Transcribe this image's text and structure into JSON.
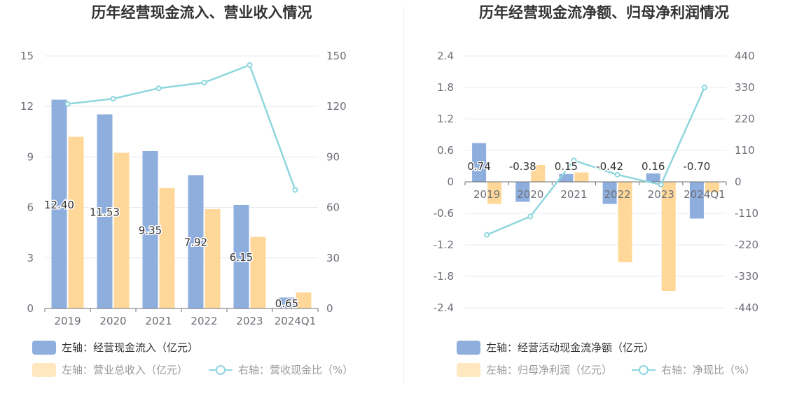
{
  "chart_data": [
    {
      "type": "bar",
      "title": "历年经营现金流入、营业收入情况",
      "categories": [
        "2019",
        "2020",
        "2021",
        "2022",
        "2023",
        "2024Q1"
      ],
      "left_axis": {
        "ticks": [
          "0",
          "3",
          "6",
          "9",
          "12",
          "15"
        ],
        "ylim": [
          0,
          15
        ]
      },
      "right_axis": {
        "ticks": [
          "0",
          "30",
          "60",
          "90",
          "120",
          "150"
        ],
        "ylim": [
          0,
          150
        ]
      },
      "series": [
        {
          "name": "左轴：经营现金流入（亿元）",
          "axis": "left",
          "color": "#8eaedd",
          "values": [
            12.4,
            11.53,
            9.35,
            7.92,
            6.15,
            0.65
          ],
          "labels": [
            "12.40",
            "11.53",
            "9.35",
            "7.92",
            "6.15",
            "0.65"
          ]
        },
        {
          "name": "左轴：营业总收入（亿元）",
          "axis": "left",
          "color": "#ffd899",
          "values": [
            10.2,
            9.25,
            7.15,
            5.9,
            4.25,
            0.95
          ]
        },
        {
          "name": "右轴：营收现金比（%）",
          "axis": "right",
          "type": "line",
          "color": "#8ed7dd",
          "values": [
            121.5,
            124.6,
            130.8,
            134.2,
            144.6,
            70.4
          ]
        }
      ],
      "grid": true,
      "legend_position": "bottom-left"
    },
    {
      "type": "bar",
      "title": "历年经营现金流净额、归母净利润情况",
      "categories": [
        "2019",
        "2020",
        "2021",
        "2022",
        "2023",
        "2024Q1"
      ],
      "left_axis": {
        "ticks": [
          "-2.4",
          "-1.8",
          "-1.2",
          "-0.6",
          "0",
          "0.6",
          "1.2",
          "1.8",
          "2.4"
        ],
        "ylim": [
          -2.4,
          2.4
        ]
      },
      "right_axis": {
        "ticks": [
          "-440",
          "-330",
          "-220",
          "-110",
          "0",
          "110",
          "220",
          "330",
          "440"
        ],
        "ylim": [
          -440,
          440
        ]
      },
      "series": [
        {
          "name": "左轴：经营活动现金流净额（亿元）",
          "axis": "left",
          "color": "#8eaedd",
          "values": [
            0.74,
            -0.38,
            0.15,
            -0.42,
            0.16,
            -0.7
          ],
          "labels": [
            "0.74",
            "-0.38",
            "0.15",
            "-0.42",
            "0.16",
            "-0.70"
          ]
        },
        {
          "name": "左轴：归母净利润（亿元）",
          "axis": "left",
          "color": "#ffd899",
          "values": [
            -0.42,
            0.32,
            0.18,
            -1.53,
            -2.08,
            -0.2
          ]
        },
        {
          "name": "右轴：净现比（%）",
          "axis": "right",
          "type": "line",
          "color": "#8ed7dd",
          "values": [
            -185,
            -121,
            75,
            25,
            -10,
            330
          ]
        }
      ],
      "grid": true,
      "legend_position": "bottom-left"
    }
  ]
}
